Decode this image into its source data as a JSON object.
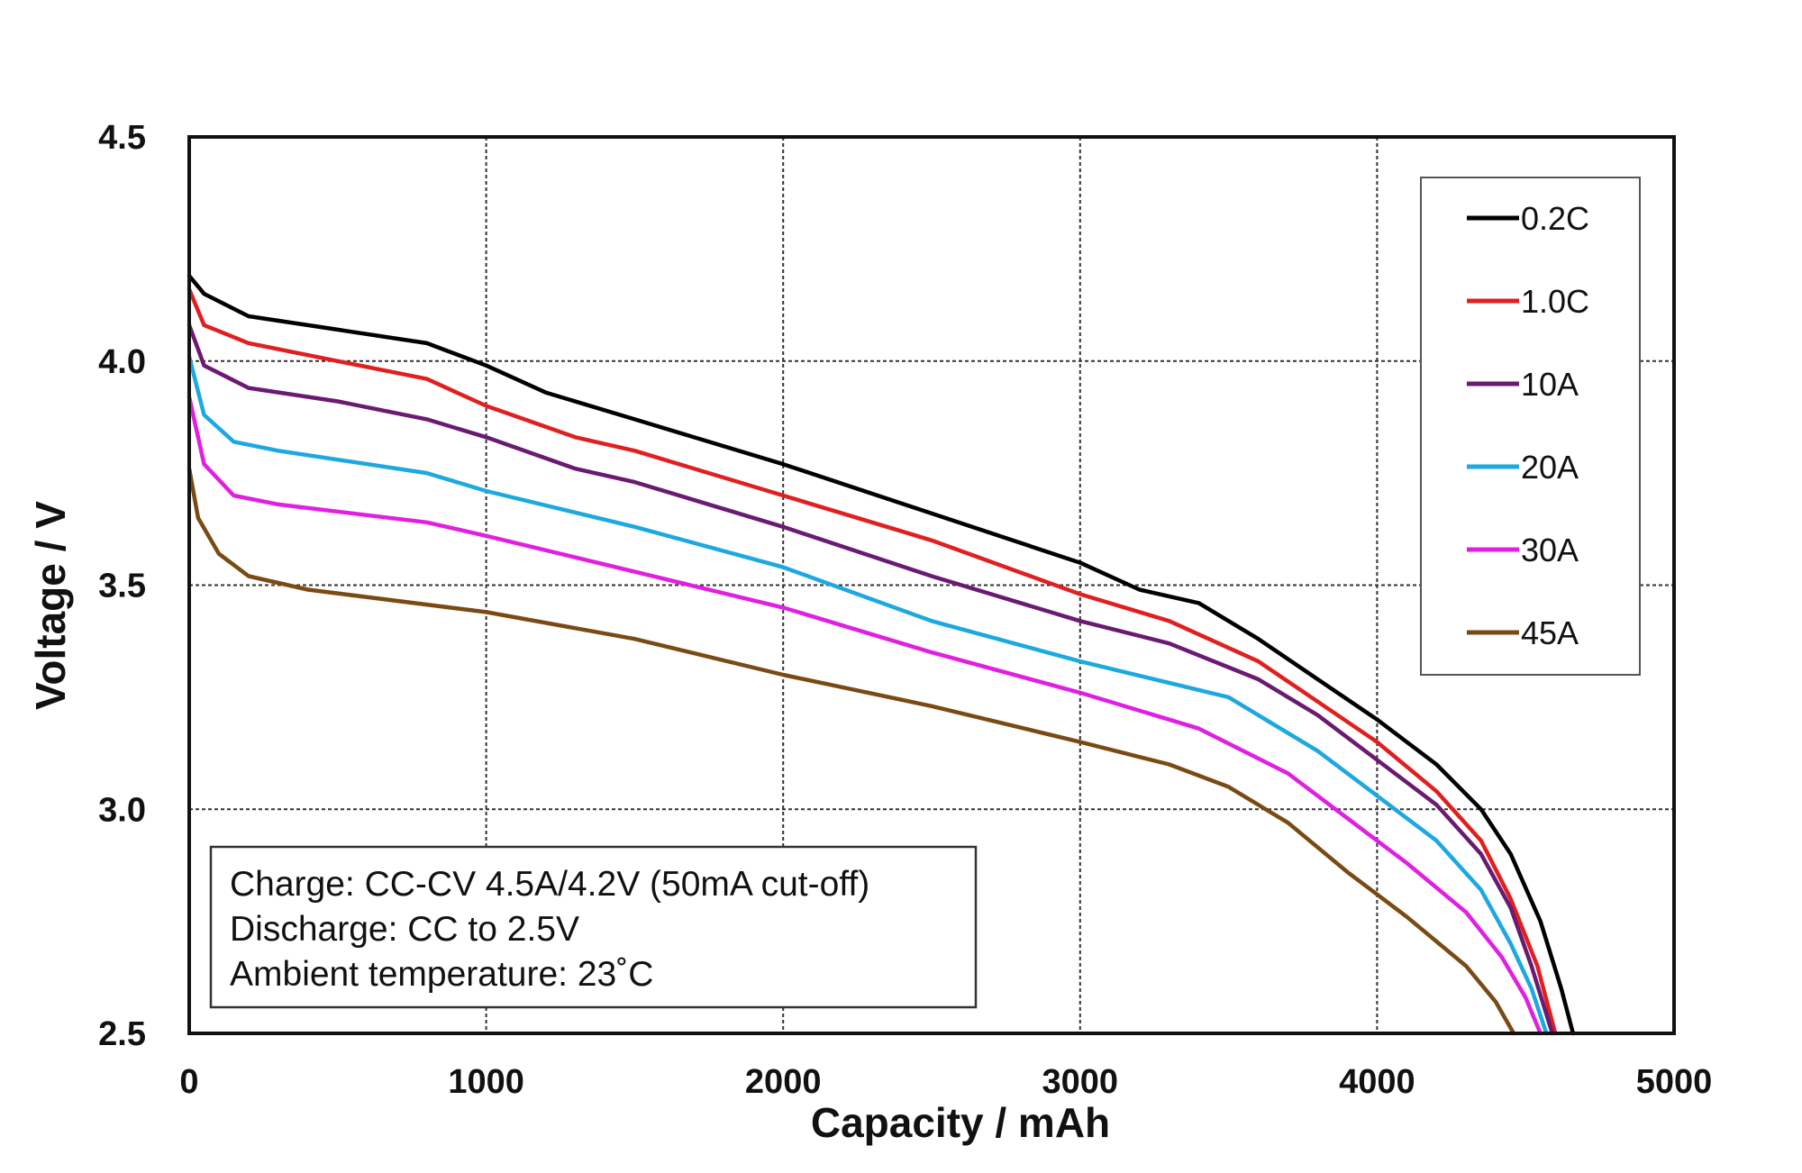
{
  "chart_data": {
    "type": "line",
    "title": "",
    "xlabel": "Capacity / mAh",
    "ylabel": "Voltage / V",
    "xlim": [
      0,
      5000
    ],
    "ylim": [
      2.5,
      4.5
    ],
    "xticks": [
      "0",
      "1000",
      "2000",
      "3000",
      "4000",
      "5000"
    ],
    "yticks": [
      "2.5",
      "3.0",
      "3.5",
      "4.0",
      "4.5"
    ],
    "grid": true,
    "legend_position": "top-right",
    "annotation": [
      "Charge: CC-CV 4.5A/4.2V (50mA cut-off)",
      "Discharge: CC to 2.5V",
      "Ambient temperature: 23˚C"
    ],
    "series": [
      {
        "name": "0.2C",
        "color": "#000000",
        "points": [
          [
            0,
            4.19
          ],
          [
            50,
            4.15
          ],
          [
            200,
            4.1
          ],
          [
            500,
            4.07
          ],
          [
            800,
            4.04
          ],
          [
            1000,
            3.99
          ],
          [
            1200,
            3.93
          ],
          [
            1500,
            3.87
          ],
          [
            2000,
            3.77
          ],
          [
            2500,
            3.66
          ],
          [
            3000,
            3.55
          ],
          [
            3200,
            3.49
          ],
          [
            3400,
            3.46
          ],
          [
            3600,
            3.38
          ],
          [
            3800,
            3.29
          ],
          [
            4000,
            3.2
          ],
          [
            4200,
            3.1
          ],
          [
            4350,
            3.0
          ],
          [
            4450,
            2.9
          ],
          [
            4550,
            2.75
          ],
          [
            4620,
            2.6
          ],
          [
            4660,
            2.5
          ]
        ]
      },
      {
        "name": "1.0C",
        "color": "#e02020",
        "points": [
          [
            0,
            4.16
          ],
          [
            50,
            4.08
          ],
          [
            200,
            4.04
          ],
          [
            500,
            4.0
          ],
          [
            800,
            3.96
          ],
          [
            1000,
            3.9
          ],
          [
            1300,
            3.83
          ],
          [
            1500,
            3.8
          ],
          [
            2000,
            3.7
          ],
          [
            2500,
            3.6
          ],
          [
            3000,
            3.48
          ],
          [
            3300,
            3.42
          ],
          [
            3600,
            3.33
          ],
          [
            3800,
            3.24
          ],
          [
            4000,
            3.15
          ],
          [
            4200,
            3.04
          ],
          [
            4350,
            2.93
          ],
          [
            4450,
            2.8
          ],
          [
            4540,
            2.65
          ],
          [
            4600,
            2.5
          ]
        ]
      },
      {
        "name": "10A",
        "color": "#6a1a70",
        "points": [
          [
            0,
            4.08
          ],
          [
            50,
            3.99
          ],
          [
            200,
            3.94
          ],
          [
            500,
            3.91
          ],
          [
            800,
            3.87
          ],
          [
            1000,
            3.83
          ],
          [
            1300,
            3.76
          ],
          [
            1500,
            3.73
          ],
          [
            2000,
            3.63
          ],
          [
            2500,
            3.52
          ],
          [
            3000,
            3.42
          ],
          [
            3300,
            3.37
          ],
          [
            3600,
            3.29
          ],
          [
            3800,
            3.21
          ],
          [
            4000,
            3.11
          ],
          [
            4200,
            3.01
          ],
          [
            4350,
            2.9
          ],
          [
            4450,
            2.78
          ],
          [
            4520,
            2.65
          ],
          [
            4590,
            2.5
          ]
        ]
      },
      {
        "name": "20A",
        "color": "#1ea8e0",
        "points": [
          [
            0,
            4.01
          ],
          [
            50,
            3.88
          ],
          [
            150,
            3.82
          ],
          [
            300,
            3.8
          ],
          [
            800,
            3.75
          ],
          [
            1000,
            3.71
          ],
          [
            1500,
            3.63
          ],
          [
            2000,
            3.54
          ],
          [
            2500,
            3.42
          ],
          [
            3000,
            3.33
          ],
          [
            3500,
            3.25
          ],
          [
            3800,
            3.13
          ],
          [
            4000,
            3.03
          ],
          [
            4200,
            2.93
          ],
          [
            4350,
            2.82
          ],
          [
            4450,
            2.7
          ],
          [
            4520,
            2.6
          ],
          [
            4570,
            2.5
          ]
        ]
      },
      {
        "name": "30A",
        "color": "#e020e0",
        "points": [
          [
            0,
            3.92
          ],
          [
            50,
            3.77
          ],
          [
            150,
            3.7
          ],
          [
            300,
            3.68
          ],
          [
            800,
            3.64
          ],
          [
            1000,
            3.61
          ],
          [
            1500,
            3.53
          ],
          [
            2000,
            3.45
          ],
          [
            2500,
            3.35
          ],
          [
            3000,
            3.26
          ],
          [
            3400,
            3.18
          ],
          [
            3700,
            3.08
          ],
          [
            3900,
            2.98
          ],
          [
            4100,
            2.88
          ],
          [
            4300,
            2.77
          ],
          [
            4420,
            2.67
          ],
          [
            4500,
            2.58
          ],
          [
            4550,
            2.5
          ]
        ]
      },
      {
        "name": "45A",
        "color": "#7a4a14",
        "points": [
          [
            0,
            3.76
          ],
          [
            30,
            3.65
          ],
          [
            100,
            3.57
          ],
          [
            200,
            3.52
          ],
          [
            400,
            3.49
          ],
          [
            1000,
            3.44
          ],
          [
            1500,
            3.38
          ],
          [
            2000,
            3.3
          ],
          [
            2500,
            3.23
          ],
          [
            3000,
            3.15
          ],
          [
            3300,
            3.1
          ],
          [
            3500,
            3.05
          ],
          [
            3700,
            2.97
          ],
          [
            3900,
            2.86
          ],
          [
            4100,
            2.76
          ],
          [
            4300,
            2.65
          ],
          [
            4400,
            2.57
          ],
          [
            4460,
            2.5
          ]
        ]
      }
    ]
  }
}
